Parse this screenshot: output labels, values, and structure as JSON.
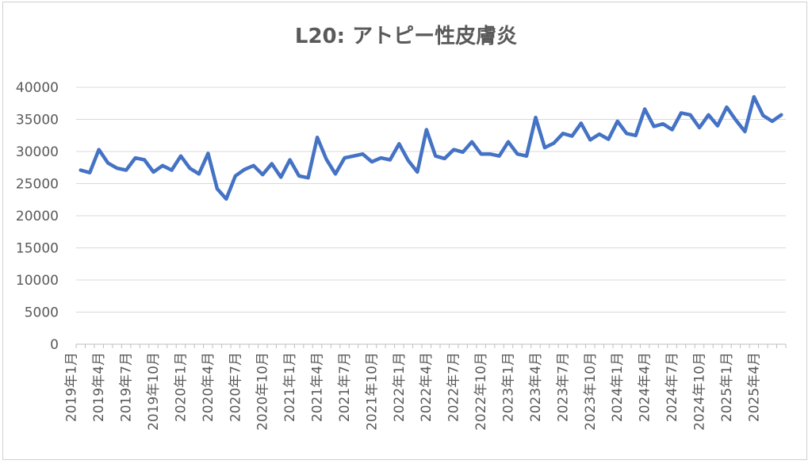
{
  "chart_data": {
    "type": "line",
    "title": "L20: アトピー性皮膚炎",
    "xlabel": "",
    "ylabel": "",
    "ylim": [
      0,
      40000
    ],
    "yticks": [
      0,
      5000,
      10000,
      15000,
      20000,
      25000,
      30000,
      35000,
      40000
    ],
    "grid": true,
    "legend": "none",
    "line_color": "#4472C4",
    "x_tick_labels": [
      "2019年1月",
      "2019年4月",
      "2019年7月",
      "2019年10月",
      "2020年1月",
      "2020年4月",
      "2020年7月",
      "2020年10月",
      "2021年1月",
      "2021年4月",
      "2021年7月",
      "2021年10月",
      "2022年1月",
      "2022年4月",
      "2022年7月",
      "2022年10月",
      "2023年1月",
      "2023年4月",
      "2023年7月",
      "2023年10月",
      "2024年1月",
      "2024年4月",
      "2024年7月",
      "2024年10月",
      "2025年1月",
      "2025年4月"
    ],
    "x_start": "2019-01",
    "x_end": "2025-06",
    "series": [
      {
        "values": [
          27100,
          26700,
          30300,
          28200,
          27400,
          27100,
          29000,
          28700,
          26800,
          27800,
          27100,
          29300,
          27400,
          26500,
          29700,
          24200,
          22600,
          26200,
          27200,
          27800,
          26400,
          28100,
          26000,
          28700,
          26200,
          25900,
          32200,
          28800,
          26500,
          29000,
          29300,
          29600,
          28400,
          29000,
          28700,
          31200,
          28600,
          26800,
          33400,
          29300,
          28900,
          30300,
          29900,
          31500,
          29600,
          29600,
          29300,
          31500,
          29600,
          29300,
          35300,
          30600,
          31300,
          32800,
          32400,
          34400,
          31800,
          32700,
          31900,
          34700,
          32800,
          32500,
          36600,
          33900,
          34300,
          33400,
          36000,
          35700,
          33700,
          35700,
          34000,
          36900,
          34900,
          33100,
          38500,
          35600,
          34700,
          35700
        ]
      }
    ]
  }
}
